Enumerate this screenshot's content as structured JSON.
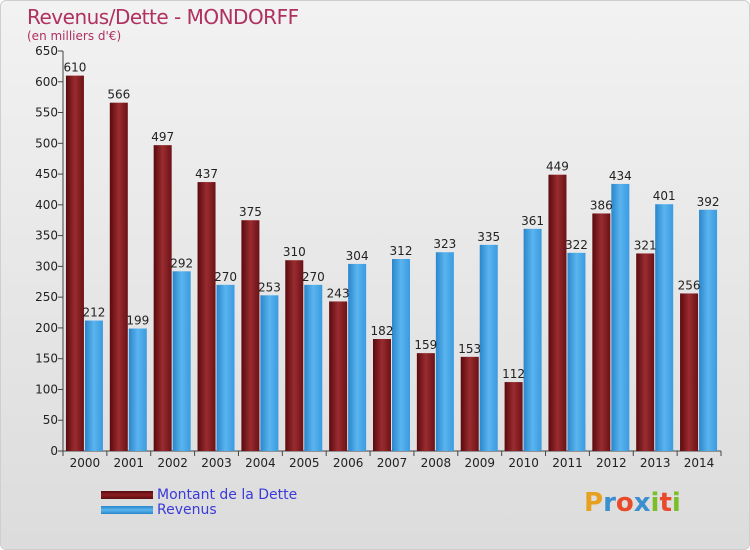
{
  "chart_data": {
    "type": "bar",
    "title": "Revenus/Dette - MONDORFF",
    "subtitle": "(en milliers d'€)",
    "categories": [
      "2000",
      "2001",
      "2002",
      "2003",
      "2004",
      "2005",
      "2006",
      "2007",
      "2008",
      "2009",
      "2010",
      "2011",
      "2012",
      "2013",
      "2014"
    ],
    "series": [
      {
        "name": "Montant de la Dette",
        "color": "#8b1e22",
        "values": [
          610,
          566,
          497,
          437,
          375,
          310,
          243,
          182,
          159,
          153,
          112,
          449,
          386,
          321,
          256
        ]
      },
      {
        "name": "Revenus",
        "color": "#3c9ee0",
        "values": [
          212,
          199,
          292,
          270,
          253,
          270,
          304,
          312,
          323,
          335,
          361,
          322,
          434,
          401,
          392
        ]
      }
    ],
    "ylim": [
      0,
      650
    ],
    "yticks": [
      0,
      50,
      100,
      150,
      200,
      250,
      300,
      350,
      400,
      450,
      500,
      550,
      600,
      650
    ],
    "grid": false,
    "legend_position": "bottom-left"
  },
  "logo": {
    "letters": [
      "P",
      "r",
      "o",
      "x",
      "i",
      "t",
      "i"
    ],
    "colors": [
      "#e8a020",
      "#3a8fd0",
      "#e84a2a",
      "#3a8fd0",
      "#7abf2a",
      "#e84a2a",
      "#7abf2a"
    ]
  }
}
